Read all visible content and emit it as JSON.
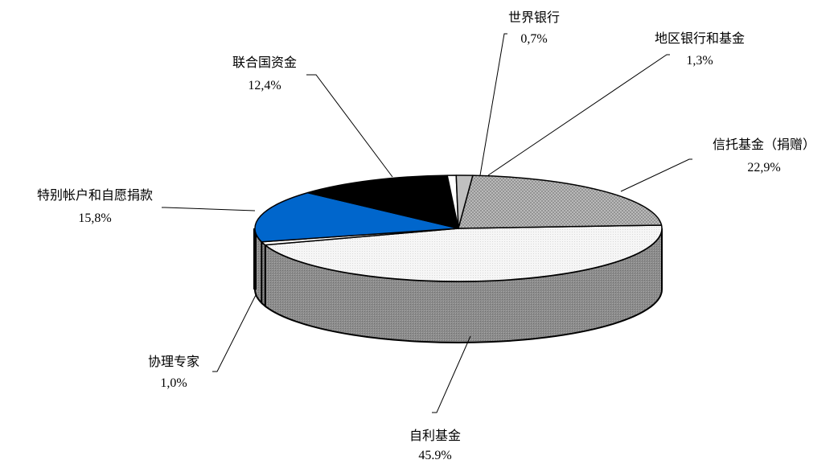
{
  "chart_data": {
    "type": "pie",
    "style": "3d-exploded-oval",
    "title": "",
    "slices": [
      {
        "label": "自利基金",
        "value_label": "45.9%",
        "value": 45.9,
        "color": "#f4f4f4",
        "pattern": "dots-light"
      },
      {
        "label": "协理专家",
        "value_label": "1,0%",
        "value": 1.0,
        "color": "#ffffff",
        "pattern": "none"
      },
      {
        "label": "特别帐户和自愿捐款",
        "value_label": "15,8%",
        "value": 15.8,
        "color": "#0066cc",
        "pattern": "none"
      },
      {
        "label": "联合国资金",
        "value_label": "12,4%",
        "value": 12.4,
        "color": "#000000",
        "pattern": "none"
      },
      {
        "label": "世界银行",
        "value_label": "0,7%",
        "value": 0.7,
        "color": "#ffffff",
        "pattern": "none"
      },
      {
        "label": "地区银行和基金",
        "value_label": "1,3%",
        "value": 1.3,
        "color": "#c0c0c0",
        "pattern": "none"
      },
      {
        "label": "信托基金（捐赠）",
        "value_label": "22,9%",
        "value": 22.9,
        "color": "#b8b8b8",
        "pattern": "crosshatch"
      }
    ],
    "side_color": "#8c8c8c",
    "outline_color": "#000000",
    "legend": "none",
    "labels": "outside-with-leader-lines"
  }
}
